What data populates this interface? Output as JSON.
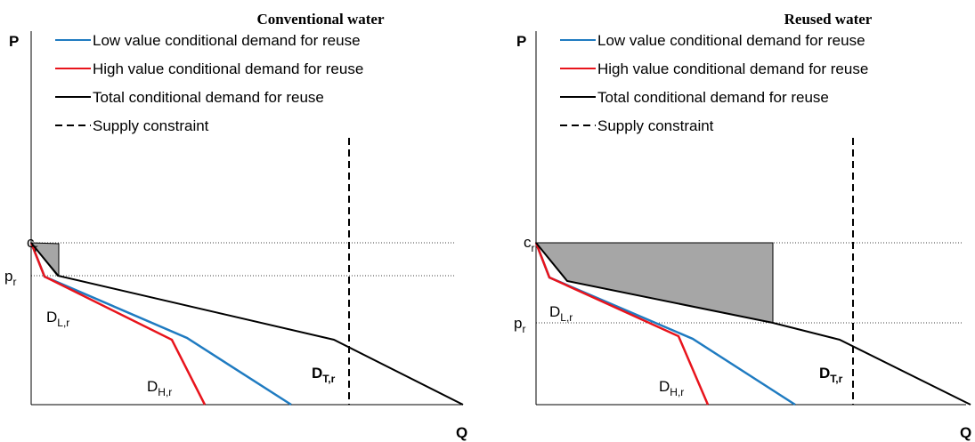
{
  "panels": [
    {
      "title": "Conventional water",
      "y_axis": "P",
      "x_axis": "Q",
      "legend": [
        "Low value conditional demand for reuse",
        "High value conditional demand for reuse",
        "Total conditional demand for reuse",
        "Supply constraint"
      ],
      "price_labels": [
        {
          "base": "c",
          "sub": "r"
        },
        {
          "base": "p",
          "sub": "r"
        }
      ],
      "curve_labels": [
        {
          "base": "D",
          "sub": "L,r"
        },
        {
          "base": "D",
          "sub": "H,r"
        },
        {
          "base": "D",
          "sub": "T,r"
        }
      ]
    },
    {
      "title": "Reused water",
      "y_axis": "P",
      "x_axis": "Q",
      "legend": [
        "Low value conditional demand for reuse",
        "High value conditional demand for reuse",
        "Total conditional demand for reuse",
        "Supply constraint"
      ],
      "price_labels": [
        {
          "base": "c",
          "sub": "r"
        },
        {
          "base": "p",
          "sub": "r"
        }
      ],
      "curve_labels": [
        {
          "base": "D",
          "sub": "L,r"
        },
        {
          "base": "D",
          "sub": "H,r"
        },
        {
          "base": "D",
          "sub": "T,r"
        }
      ]
    }
  ]
}
